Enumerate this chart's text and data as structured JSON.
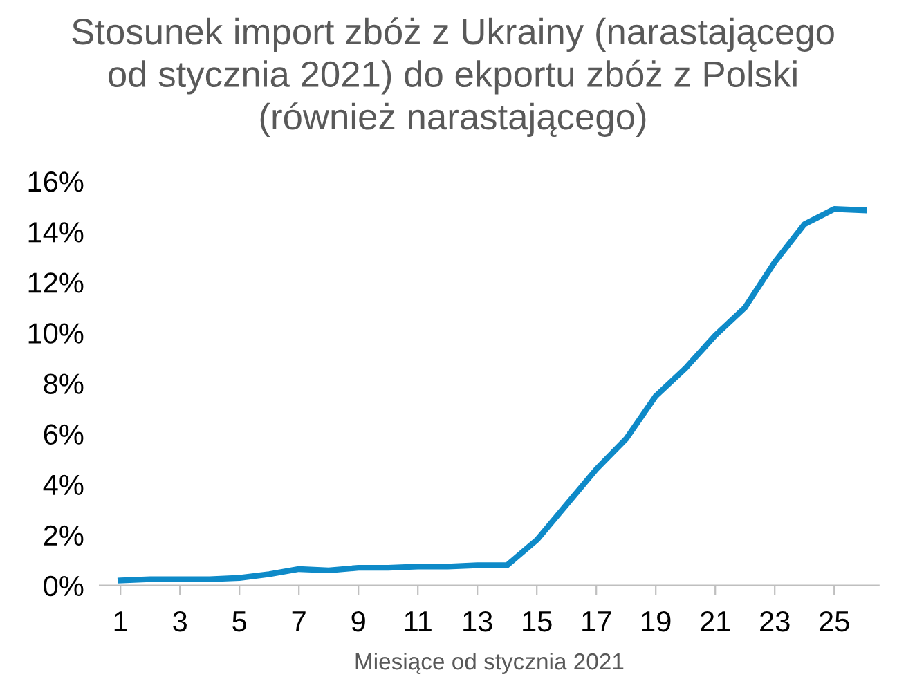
{
  "chart_data": {
    "type": "line",
    "title": "Stosunek import zbóż z Ukrainy (narastającego\nod stycznia 2021) do ekportu zbóż z Polski\n(również narastającego)",
    "xlabel": "Miesiące od stycznia 2021",
    "x": [
      1,
      2,
      3,
      4,
      5,
      6,
      7,
      8,
      9,
      10,
      11,
      12,
      13,
      14,
      15,
      16,
      17,
      18,
      19,
      20,
      21,
      22,
      23,
      24,
      25,
      26
    ],
    "series": [
      {
        "color": "#0e8ac8",
        "values": [
          0.2,
          0.25,
          0.25,
          0.25,
          0.3,
          0.45,
          0.65,
          0.6,
          0.7,
          0.7,
          0.75,
          0.75,
          0.8,
          0.8,
          1.8,
          3.2,
          4.6,
          5.8,
          7.5,
          8.6,
          9.9,
          11.0,
          12.8,
          14.3,
          14.9,
          14.85
        ]
      }
    ],
    "xlim": [
      0.3,
      26.5
    ],
    "xticks": [
      1,
      3,
      5,
      7,
      9,
      11,
      13,
      15,
      17,
      19,
      21,
      23,
      25
    ],
    "ylim": [
      0,
      16
    ],
    "yticks": [
      {
        "value": 0,
        "label": "0%"
      },
      {
        "value": 2,
        "label": "2%"
      },
      {
        "value": 4,
        "label": "4%"
      },
      {
        "value": 6,
        "label": "6%"
      },
      {
        "value": 8,
        "label": "8%"
      },
      {
        "value": 10,
        "label": "10%"
      },
      {
        "value": 12,
        "label": "12%"
      },
      {
        "value": 14,
        "label": "14%"
      },
      {
        "value": 16,
        "label": "16%"
      }
    ],
    "grid": false,
    "legend": false,
    "marker": "none",
    "line_style": "solid"
  }
}
